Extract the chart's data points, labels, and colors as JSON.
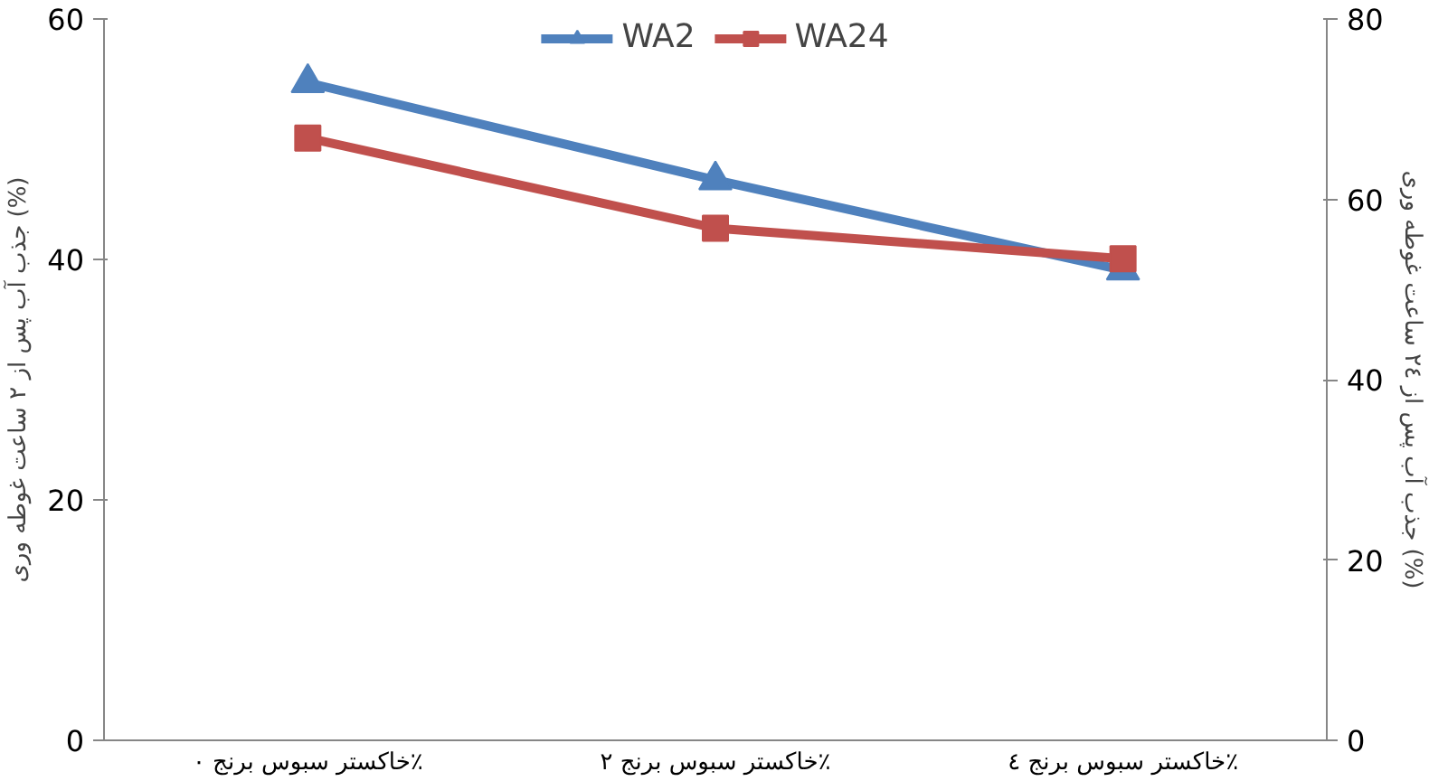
{
  "chart_data": {
    "type": "line",
    "categories": [
      "خاکستر سبوس برنج ۰٪",
      "خاکستر سبوس برنج ۲٪",
      "خاکستر سبوس برنج ٤٪"
    ],
    "series": [
      {
        "name": "WA2",
        "color": "#4f81bd",
        "values": [
          54.7,
          46.6,
          39.1
        ],
        "marker": "triangle"
      },
      {
        "name": "WA24",
        "color": "#c0504d",
        "values": [
          66.8,
          56.8,
          53.4
        ],
        "marker": "square",
        "axis": "y2"
      }
    ],
    "ylabel": "جذب آب پس از ۲ ساعت غوطه وری (%)",
    "y2label": "جذب آب پس از ۲٤ ساعت غوطه وری (%)",
    "ylim": [
      0,
      60
    ],
    "yticks": [
      0,
      20,
      40,
      60
    ],
    "y2lim": [
      0,
      80
    ],
    "y2ticks": [
      0,
      20,
      40,
      60,
      80
    ],
    "grid": false,
    "legend": "top",
    "line_style": "solid"
  }
}
